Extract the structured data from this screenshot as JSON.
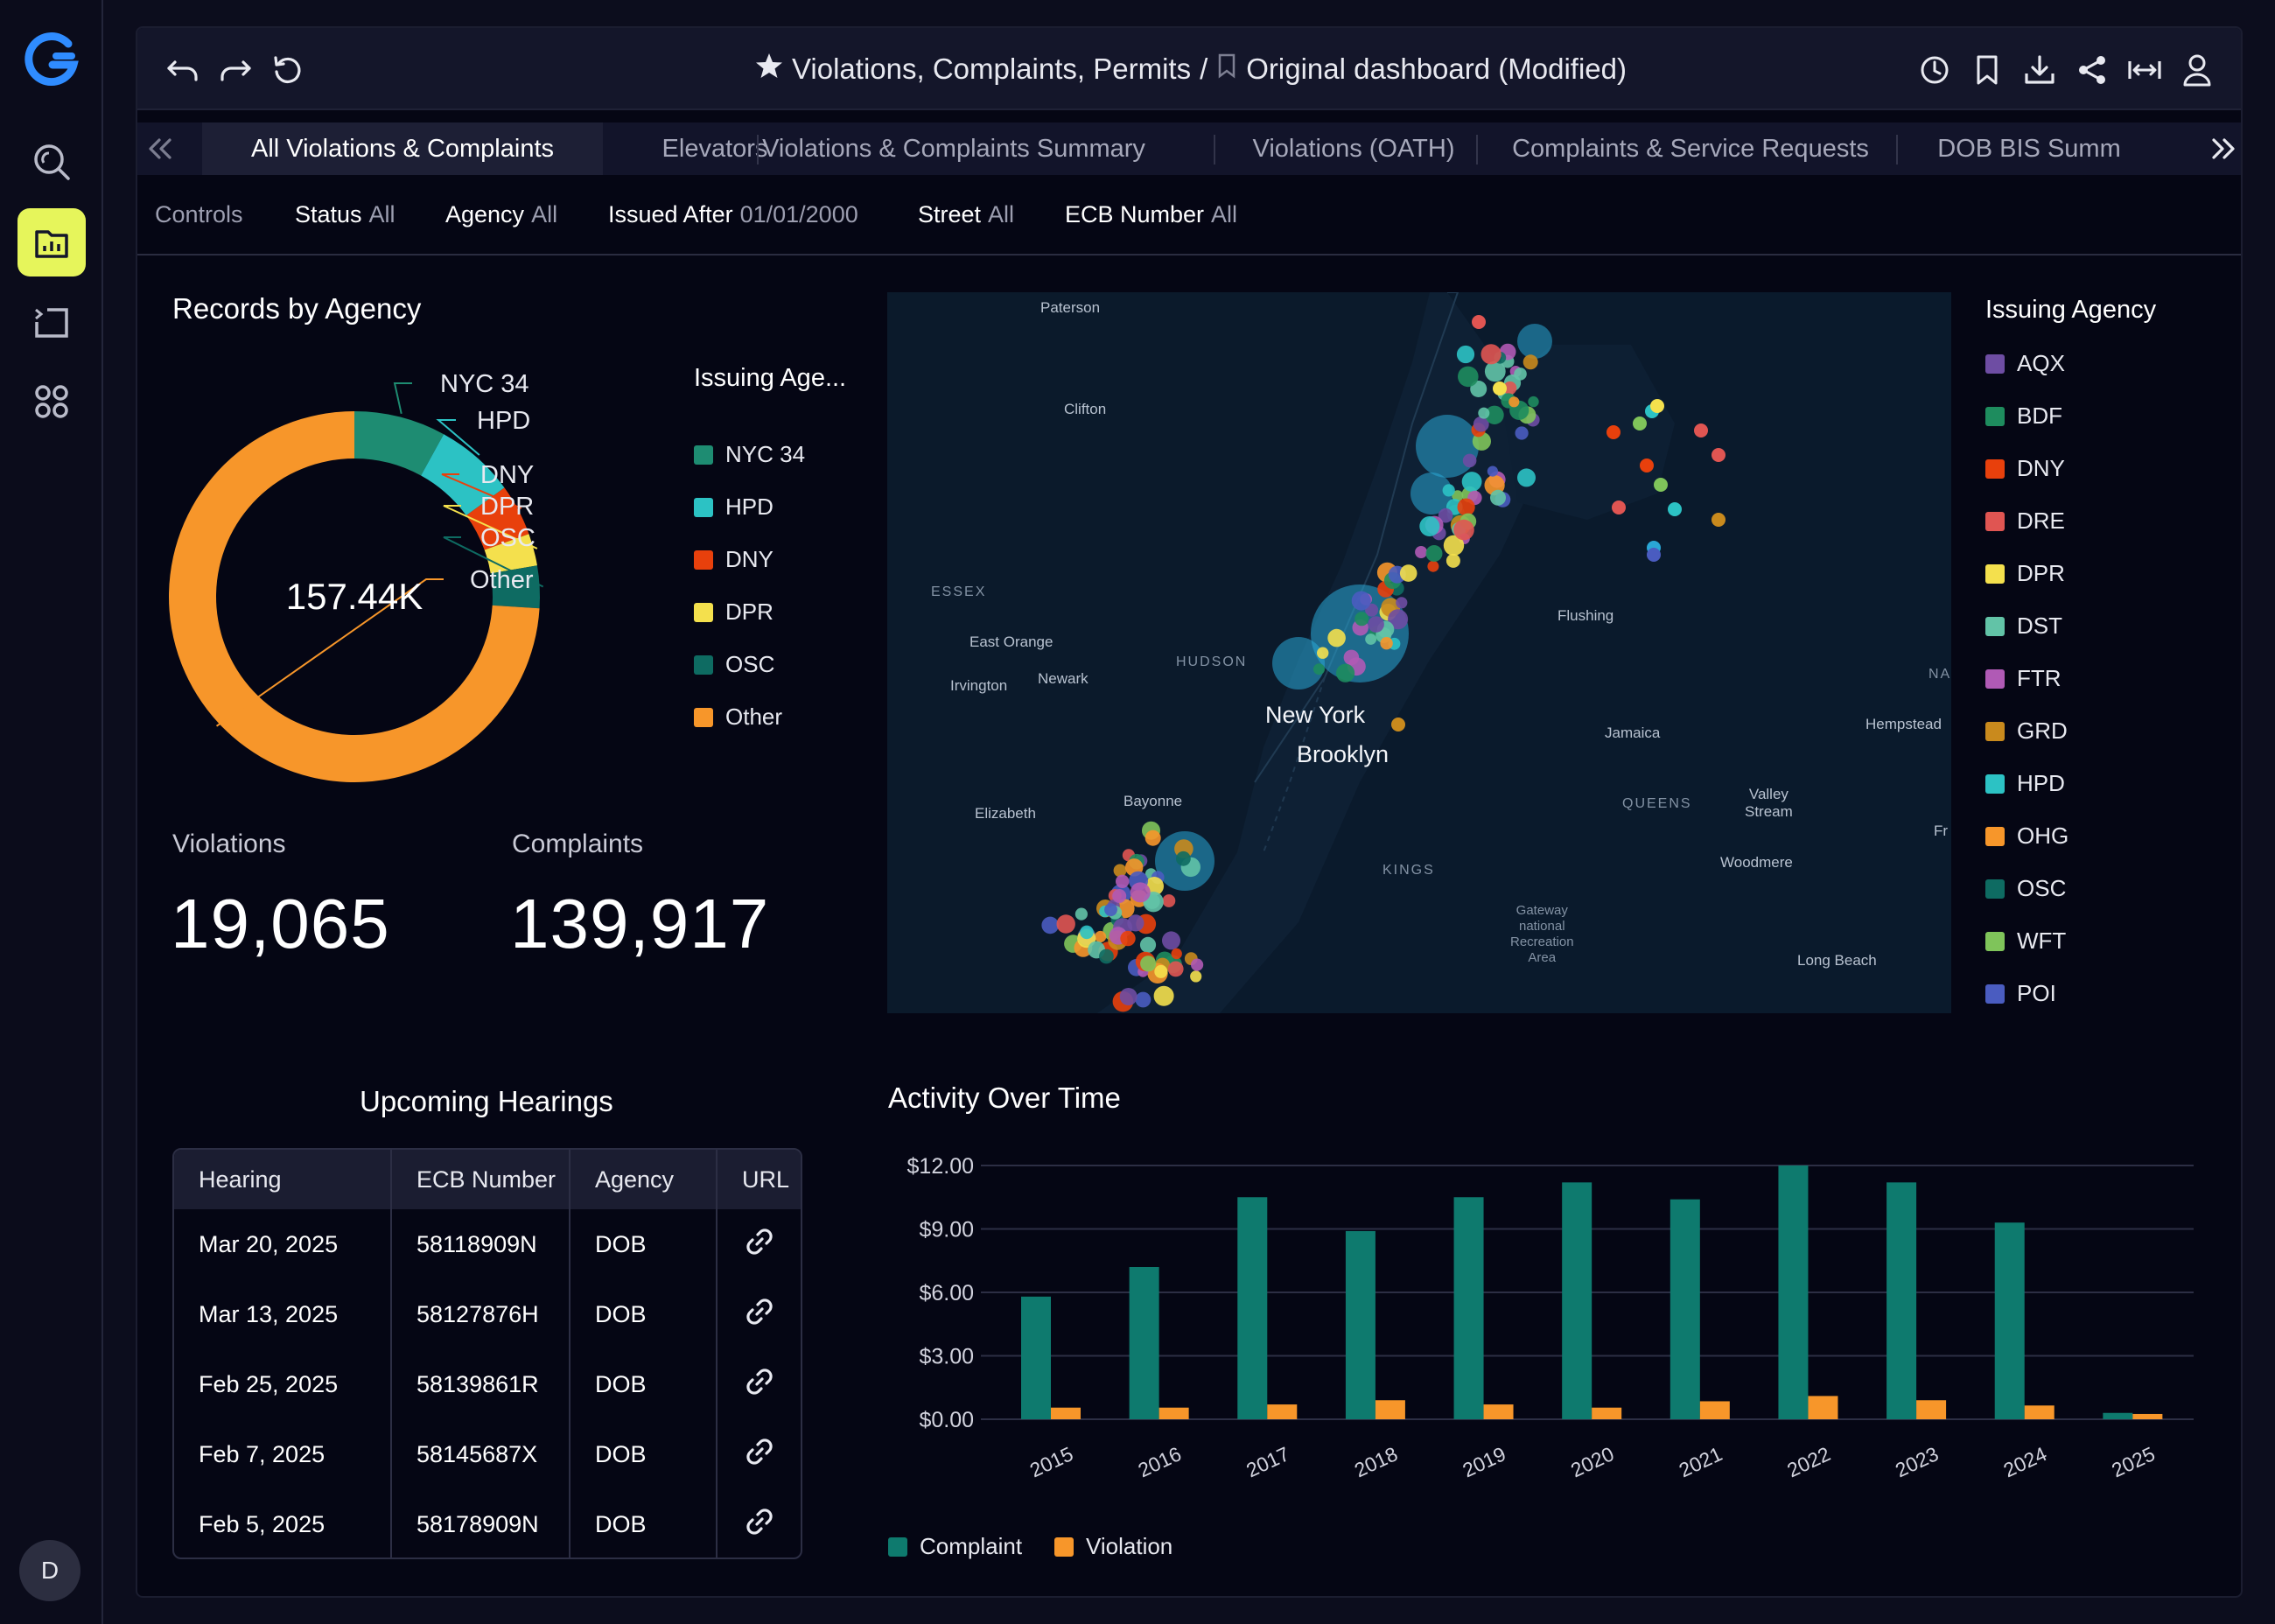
{
  "toolbar": {
    "breadcrumb_parent": "Violations, Complaints, Permits",
    "breadcrumb_sep": "/",
    "dashboard_name": "Original dashboard (Modified)"
  },
  "tabs": [
    {
      "label": "All Violations & Complaints",
      "active": true
    },
    {
      "label": "Elevators",
      "active": false
    },
    {
      "label": "Violations & Complaints Summary",
      "active": false
    },
    {
      "label": "Violations (OATH)",
      "active": false
    },
    {
      "label": "Complaints & Service Requests",
      "active": false
    },
    {
      "label": "DOB BIS Summ",
      "active": false
    }
  ],
  "filters": {
    "controls_label": "Controls",
    "status": {
      "label": "Status",
      "value": "All"
    },
    "agency": {
      "label": "Agency",
      "value": "All"
    },
    "issued_after": {
      "label": "Issued After",
      "value": "01/01/2000"
    },
    "street": {
      "label": "Street",
      "value": "All"
    },
    "ecb_number": {
      "label": "ECB Number",
      "value": "All"
    }
  },
  "records_by_agency": {
    "title": "Records by Agency",
    "total": "157.44K",
    "legend_title": "Issuing Age...",
    "slices": [
      {
        "label": "NYC 34",
        "fraction": 0.08,
        "color": "#1e8c72"
      },
      {
        "label": "HPD",
        "fraction": 0.07,
        "color": "#2cc2c4"
      },
      {
        "label": "DNY",
        "fraction": 0.045,
        "color": "#e8400c"
      },
      {
        "label": "DPR",
        "fraction": 0.028,
        "color": "#f4e04d"
      },
      {
        "label": "OSC",
        "fraction": 0.037,
        "color": "#0e6b62"
      },
      {
        "label": "Other",
        "fraction": 0.74,
        "color": "#f7962a"
      }
    ]
  },
  "kpis": {
    "violations_label": "Violations",
    "violations_value": "19,065",
    "complaints_label": "Complaints",
    "complaints_value": "139,917"
  },
  "map": {
    "legend_title": "Issuing Agency",
    "agencies": [
      {
        "code": "AQX",
        "color": "#6e4da3"
      },
      {
        "code": "BDF",
        "color": "#1e8c5e"
      },
      {
        "code": "DNY",
        "color": "#e8400c"
      },
      {
        "code": "DRE",
        "color": "#e05552"
      },
      {
        "code": "DPR",
        "color": "#f4e04d"
      },
      {
        "code": "DST",
        "color": "#62c3a7"
      },
      {
        "code": "FTR",
        "color": "#b05ab5"
      },
      {
        "code": "GRD",
        "color": "#c98a1d"
      },
      {
        "code": "HPD",
        "color": "#2cc2c4"
      },
      {
        "code": "OHG",
        "color": "#f7962a"
      },
      {
        "code": "OSC",
        "color": "#0e6b62"
      },
      {
        "code": "WFT",
        "color": "#7fc45a"
      },
      {
        "code": "POI",
        "color": "#4a5cc0"
      }
    ],
    "places": {
      "paterson": "Paterson",
      "clifton": "Clifton",
      "essex": "ESSEX",
      "east_orange": "East Orange",
      "irvington": "Irvington",
      "newark": "Newark",
      "hudson": "HUDSON",
      "new_york": "New York",
      "brooklyn": "Brooklyn",
      "elizabeth": "Elizabeth",
      "bayonne": "Bayonne",
      "flushing": "Flushing",
      "jamaica": "Jamaica",
      "hempstead": "Hempstead",
      "queens": "QUEENS",
      "valley_stream": "Valley\nStream",
      "woodmere": "Woodmere",
      "kings": "KINGS",
      "gateway": "Gateway\nnational\nRecreation\nArea",
      "long_beach": "Long Beach",
      "na": "NA",
      "fr": "Fr"
    }
  },
  "hearings": {
    "title": "Upcoming Hearings",
    "columns": [
      "Hearing",
      "ECB Number",
      "Agency",
      "URL"
    ],
    "rows": [
      {
        "hearing": "Mar 20, 2025",
        "ecb": "58118909N",
        "agency": "DOB"
      },
      {
        "hearing": "Mar 13, 2025",
        "ecb": "58127876H",
        "agency": "DOB"
      },
      {
        "hearing": "Feb 25, 2025",
        "ecb": "58139861R",
        "agency": "DOB"
      },
      {
        "hearing": "Feb 7, 2025",
        "ecb": "58145687X",
        "agency": "DOB"
      },
      {
        "hearing": "Feb 5, 2025",
        "ecb": "58178909N",
        "agency": "DOB"
      }
    ]
  },
  "chart_data": {
    "type": "bar",
    "title": "Activity Over Time",
    "categories": [
      "2015",
      "2016",
      "2017",
      "2018",
      "2019",
      "2020",
      "2021",
      "2022",
      "2023",
      "2024",
      "2025"
    ],
    "series": [
      {
        "name": "Complaint",
        "color": "#0e7a6e",
        "values": [
          5.8,
          7.2,
          10.5,
          8.9,
          10.5,
          11.2,
          10.4,
          12.0,
          11.2,
          9.3,
          0.3
        ]
      },
      {
        "name": "Violation",
        "color": "#f7962a",
        "values": [
          0.55,
          0.55,
          0.7,
          0.9,
          0.7,
          0.55,
          0.85,
          1.1,
          0.9,
          0.65,
          0.25
        ]
      }
    ],
    "yticks": [
      "$0.00",
      "$3.00",
      "$6.00",
      "$9.00",
      "$12.00"
    ],
    "ylim": [
      0,
      12
    ],
    "grid": true,
    "legend": "bottom-left"
  }
}
